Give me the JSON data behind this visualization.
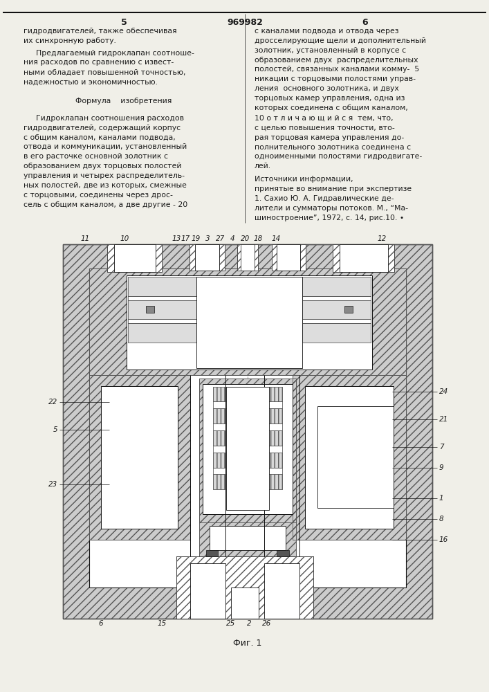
{
  "page_color": "#f0efe8",
  "text_color": "#1a1a1a",
  "title_patent": "969982",
  "col_left_page": "5",
  "col_right_page": "6",
  "hatch_color": "#444444",
  "hatch_bg": "#cccccc",
  "line_color": "#111111",
  "fig_caption": "Фиг. 1",
  "left_col_text": [
    [
      30,
      36,
      "гидродвигателей, также обеспечивая"
    ],
    [
      30,
      50,
      "их синхронную работу."
    ],
    [
      48,
      68,
      "Предлагаемый гидроклапан соотноше-"
    ],
    [
      30,
      82,
      "ния расходов по сравнению с извест-"
    ],
    [
      30,
      96,
      "ными обладает повышенной точностью,"
    ],
    [
      30,
      110,
      "надежностью и экономичностью."
    ],
    [
      177,
      138,
      "Формула    изобретения"
    ],
    [
      48,
      163,
      "Гидроклапан соотношения расходов"
    ],
    [
      30,
      177,
      "гидродвигателей, содержащий корпус"
    ],
    [
      30,
      191,
      "с общим каналом, каналами подвода,"
    ],
    [
      30,
      205,
      "отвода и коммуникации, установленный"
    ],
    [
      30,
      219,
      "в его расточке основной золотник с"
    ],
    [
      30,
      233,
      "образованием двух торцовых полостей"
    ],
    [
      30,
      247,
      "управления и четырех распределитель-"
    ],
    [
      30,
      261,
      "ных полостей, две из которых, смежные"
    ],
    [
      30,
      275,
      "с торцовыми, соединены через дрос-"
    ],
    [
      30,
      289,
      "сель с общим каналом, а две другие - 20"
    ]
  ],
  "right_col_text": [
    [
      368,
      36,
      "с каналами подвода и отвода через"
    ],
    [
      368,
      50,
      "дросселирующие щели и дополнительный"
    ],
    [
      368,
      64,
      "золотник, установленный в корпусе с"
    ],
    [
      368,
      78,
      "образованием двух  распределительных"
    ],
    [
      368,
      92,
      "полостей, связанных каналами комму-  5"
    ],
    [
      368,
      106,
      "никации с торцовыми полостями управ-"
    ],
    [
      368,
      120,
      "ления  основного золотника, и двух"
    ],
    [
      368,
      134,
      "торцовых камер управления, одна из"
    ],
    [
      368,
      148,
      "которых соединена с общим каналом,"
    ],
    [
      368,
      163,
      "10 о т л и ч а ю щ и й с я  тем, что,"
    ],
    [
      368,
      177,
      "с целью повышения точности, вто-"
    ],
    [
      368,
      191,
      "рая торцовая камера управления до-"
    ],
    [
      368,
      205,
      "полнительного золотника соединена с"
    ],
    [
      368,
      219,
      "одноименными полостями гидродвигате-"
    ],
    [
      368,
      233,
      "лей."
    ],
    [
      368,
      252,
      "Источники информации,"
    ],
    [
      368,
      266,
      "принятые во внимание при экспертизе"
    ],
    [
      368,
      280,
      "1. Сахио Ю. А. Гидравлические де-"
    ],
    [
      368,
      294,
      "лители и сумматоры потоков. М., “Ма-"
    ],
    [
      368,
      308,
      "шиностроение”, 1972, с. 14, рис.10. •"
    ]
  ]
}
